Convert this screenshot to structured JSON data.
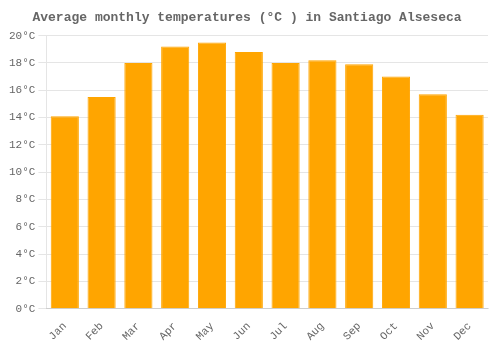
{
  "chart_data": {
    "type": "bar",
    "title": "Average monthly temperatures (°C ) in Santiago Alseseca",
    "categories": [
      "Jan",
      "Feb",
      "Mar",
      "Apr",
      "May",
      "Jun",
      "Jul",
      "Aug",
      "Sep",
      "Oct",
      "Nov",
      "Dec"
    ],
    "values": [
      14.1,
      15.5,
      18.0,
      19.2,
      19.5,
      18.8,
      18.0,
      18.2,
      17.9,
      17.0,
      15.7,
      14.2
    ],
    "color": "#FFA500",
    "ylim": [
      0,
      20
    ],
    "yticks": [
      {
        "value": 0,
        "label": "0°C"
      },
      {
        "value": 2,
        "label": "2°C"
      },
      {
        "value": 4,
        "label": "4°C"
      },
      {
        "value": 6,
        "label": "6°C"
      },
      {
        "value": 8,
        "label": "8°C"
      },
      {
        "value": 10,
        "label": "10°C"
      },
      {
        "value": 12,
        "label": "12°C"
      },
      {
        "value": 14,
        "label": "14°C"
      },
      {
        "value": 16,
        "label": "16°C"
      },
      {
        "value": 18,
        "label": "18°C"
      },
      {
        "value": 20,
        "label": "20°C"
      }
    ],
    "grid": true
  }
}
